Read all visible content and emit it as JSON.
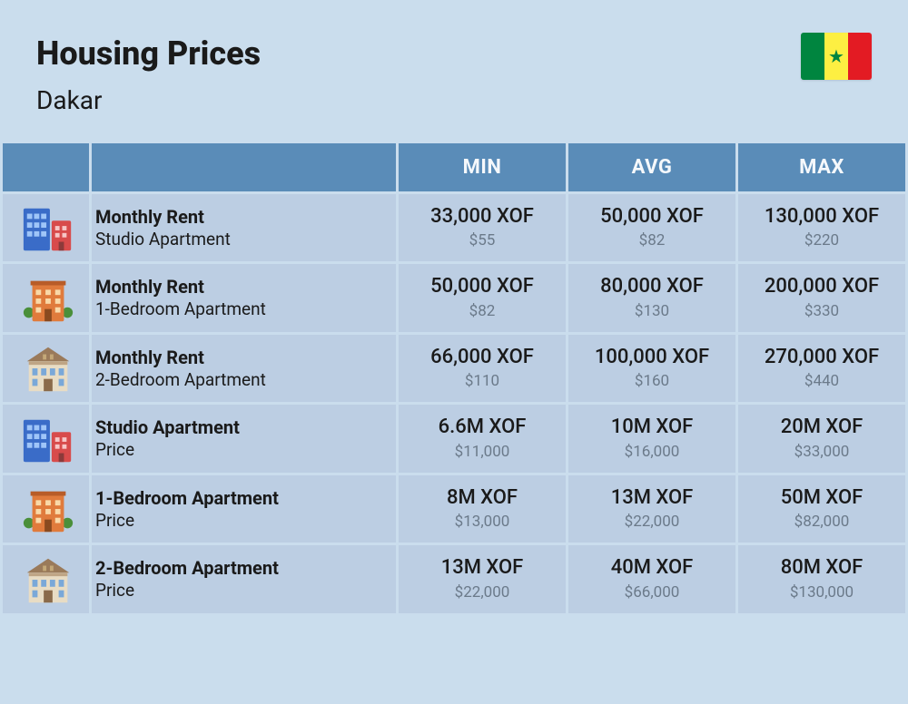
{
  "header": {
    "title": "Housing Prices",
    "city": "Dakar",
    "flag": {
      "stripe_colors": [
        "#00853f",
        "#fdef42",
        "#e31b23"
      ],
      "star_color": "#00853f"
    }
  },
  "table": {
    "columns": [
      "MIN",
      "AVG",
      "MAX"
    ],
    "header_bg": "#5a8cb8",
    "header_text_color": "#f5f8fb",
    "cell_bg": "#bccee3",
    "primary_text_color": "#1a1a1a",
    "secondary_text_color": "#6b7a8a",
    "rows": [
      {
        "icon": "buildings-icon",
        "title": "Monthly Rent",
        "subtitle": "Studio Apartment",
        "min": {
          "primary": "33,000 XOF",
          "secondary": "$55"
        },
        "avg": {
          "primary": "50,000 XOF",
          "secondary": "$82"
        },
        "max": {
          "primary": "130,000 XOF",
          "secondary": "$220"
        }
      },
      {
        "icon": "apartment-icon",
        "title": "Monthly Rent",
        "subtitle": "1-Bedroom Apartment",
        "min": {
          "primary": "50,000 XOF",
          "secondary": "$82"
        },
        "avg": {
          "primary": "80,000 XOF",
          "secondary": "$130"
        },
        "max": {
          "primary": "200,000 XOF",
          "secondary": "$330"
        }
      },
      {
        "icon": "house-icon",
        "title": "Monthly Rent",
        "subtitle": "2-Bedroom Apartment",
        "min": {
          "primary": "66,000 XOF",
          "secondary": "$110"
        },
        "avg": {
          "primary": "100,000 XOF",
          "secondary": "$160"
        },
        "max": {
          "primary": "270,000 XOF",
          "secondary": "$440"
        }
      },
      {
        "icon": "buildings-icon",
        "title": "Studio Apartment",
        "subtitle": "Price",
        "min": {
          "primary": "6.6M XOF",
          "secondary": "$11,000"
        },
        "avg": {
          "primary": "10M XOF",
          "secondary": "$16,000"
        },
        "max": {
          "primary": "20M XOF",
          "secondary": "$33,000"
        }
      },
      {
        "icon": "apartment-icon",
        "title": "1-Bedroom Apartment",
        "subtitle": "Price",
        "min": {
          "primary": "8M XOF",
          "secondary": "$13,000"
        },
        "avg": {
          "primary": "13M XOF",
          "secondary": "$22,000"
        },
        "max": {
          "primary": "50M XOF",
          "secondary": "$82,000"
        }
      },
      {
        "icon": "house-icon",
        "title": "2-Bedroom Apartment",
        "subtitle": "Price",
        "min": {
          "primary": "13M XOF",
          "secondary": "$22,000"
        },
        "avg": {
          "primary": "40M XOF",
          "secondary": "$66,000"
        },
        "max": {
          "primary": "80M XOF",
          "secondary": "$130,000"
        }
      }
    ]
  },
  "styling": {
    "page_bg": "#cadded",
    "title_fontsize": 36,
    "city_fontsize": 28,
    "header_fontsize": 22,
    "primary_fontsize": 22,
    "secondary_fontsize": 17,
    "row_title_fontsize": 20,
    "row_sub_fontsize": 19
  }
}
